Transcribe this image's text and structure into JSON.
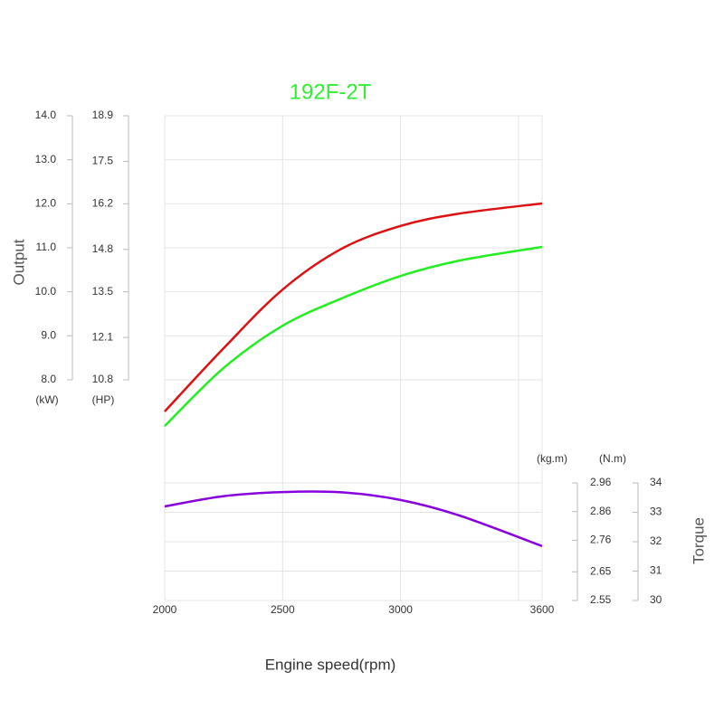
{
  "chart_data": {
    "type": "line",
    "title": "192F-2T",
    "title_color": "#33ee33",
    "x_label": "Engine speed(rpm)",
    "output_label": "Output",
    "torque_label": "Torque",
    "x": [
      2000,
      2250,
      2500,
      2750,
      3000,
      3250,
      3600
    ],
    "xlim": [
      2000,
      3600
    ],
    "xticks": [
      2000,
      2500,
      3000,
      {
        "value": 3500,
        "label": null
      },
      3600
    ],
    "grid": true,
    "y_axes": [
      {
        "unit": "(kW)",
        "color": "#33ee33",
        "ylim": [
          8,
          14
        ],
        "yticks": [
          {
            "value": 8,
            "label": "8.0"
          },
          {
            "value": 9,
            "label": "9.0"
          },
          {
            "value": 10,
            "label": "10.0"
          },
          {
            "value": 11,
            "label": "11.0"
          },
          {
            "value": 12,
            "label": "12.0"
          },
          {
            "value": 13,
            "label": "13.0"
          },
          {
            "value": 14,
            "label": "14.0"
          }
        ]
      },
      {
        "unit": "(HP)",
        "color": "#333333",
        "ylim": [
          10.8,
          18.9
        ],
        "yticks": [
          10.8,
          12.1,
          13.5,
          14.8,
          16.2,
          17.5,
          18.9
        ]
      },
      {
        "unit": "(kg.m)",
        "color": "#333333",
        "ylim": [
          2.55,
          2.96
        ],
        "yticks": [
          2.55,
          2.65,
          2.76,
          2.86,
          2.96
        ]
      },
      {
        "unit": "(N.m)",
        "color": "#33ee33",
        "ylim": [
          30,
          34
        ],
        "yticks": [
          30,
          31,
          32,
          33,
          34
        ]
      }
    ],
    "series": [
      {
        "color": "#dd1111",
        "axis": 1,
        "values": [
          9.83,
          11.77,
          13.57,
          14.82,
          15.52,
          15.9,
          16.21
        ]
      },
      {
        "color": "#22ee22",
        "axis": 0,
        "values": [
          6.95,
          8.27,
          9.23,
          9.85,
          10.36,
          10.71,
          11.02
        ]
      },
      {
        "color": "#8800dd",
        "axis": 3,
        "values": [
          33.2,
          33.55,
          33.69,
          33.68,
          33.42,
          32.89,
          31.85
        ]
      }
    ]
  }
}
